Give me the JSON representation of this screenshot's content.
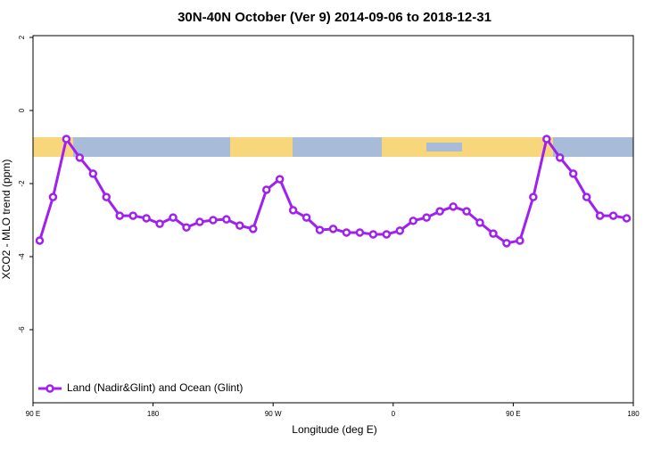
{
  "chart_data": {
    "type": "line",
    "title": "30N-40N October (Ver 9)   2014-09-06 to 2018-12-31",
    "x_label": "Longitude (deg E)",
    "y_label": "XCO2 - MLO trend (ppm)",
    "x": [
      95,
      105,
      115,
      125,
      135,
      145,
      155,
      165,
      175,
      185,
      195,
      205,
      215,
      225,
      235,
      245,
      255,
      265,
      275,
      285,
      295,
      305,
      315,
      325,
      335,
      345,
      355,
      365,
      375,
      385,
      395,
      405,
      415,
      425,
      435,
      445,
      455,
      465,
      475,
      485,
      495,
      505,
      515,
      525,
      535
    ],
    "series": [
      {
        "name": "Land (Nadir&Glint) and Ocean (Glint)",
        "color": "#a020f0",
        "values": [
          -3.56,
          -2.37,
          -0.78,
          -1.29,
          -1.73,
          -2.37,
          -2.88,
          -2.88,
          -2.95,
          -3.1,
          -2.93,
          -3.2,
          -3.05,
          -3.0,
          -2.98,
          -3.15,
          -3.24,
          -2.17,
          -1.88,
          -2.73,
          -2.93,
          -3.27,
          -3.24,
          -3.34,
          -3.34,
          -3.39,
          -3.39,
          -3.29,
          -3.02,
          -2.93,
          -2.76,
          -2.63,
          -2.76,
          -3.07,
          -3.37,
          -3.63,
          -3.56,
          -2.37,
          -0.78,
          -1.29,
          -1.73,
          -2.37,
          -2.88,
          -2.88,
          -2.95
        ]
      }
    ],
    "xlim": [
      90,
      540
    ],
    "xticks": [
      {
        "value": 90,
        "label": "90 E"
      },
      {
        "value": 180,
        "label": "180"
      },
      {
        "value": 270,
        "label": "90 W"
      },
      {
        "value": 360,
        "label": "0"
      },
      {
        "value": 450,
        "label": "90 E"
      },
      {
        "value": 540,
        "label": "180"
      }
    ],
    "ylim": [
      -8,
      2
    ],
    "yticks": [
      2,
      0,
      -2,
      -4,
      -6
    ],
    "legend": "bottom-left"
  }
}
